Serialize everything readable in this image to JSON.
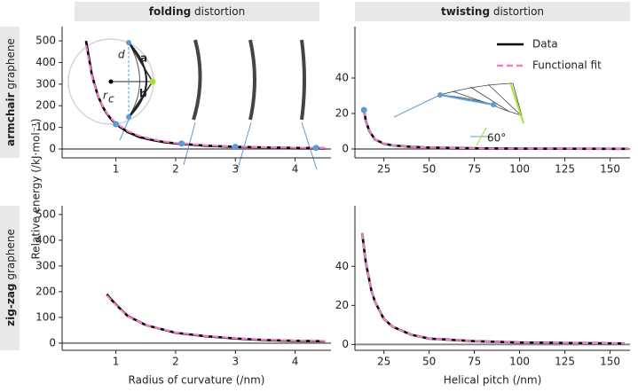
{
  "column_headers": [
    [
      "folding",
      "distortion"
    ],
    [
      "twisting",
      "distortion"
    ]
  ],
  "row_labels": [
    [
      "armchair",
      "graphene"
    ],
    [
      "zig-zag",
      "graphene"
    ]
  ],
  "y_label": "Relative energy (/kJ·mol⁻¹)",
  "chart_data": [
    {
      "type": "line",
      "xlim": [
        0.1,
        4.6
      ],
      "ylim": [
        -41,
        566
      ],
      "xticks": [
        1,
        2,
        3,
        4
      ],
      "yticks": [
        0,
        100,
        200,
        300,
        400,
        500
      ],
      "x": [
        0.5,
        0.6,
        0.7,
        0.8,
        0.9,
        1.0,
        1.2,
        1.4,
        1.6,
        1.8,
        2.0,
        2.5,
        3.0,
        3.5,
        4.0,
        4.5
      ],
      "series": [
        {
          "color": "#000000",
          "values": [
            500,
            340,
            245,
            185,
            145,
            115,
            78,
            55,
            42,
            32,
            26,
            15,
            10,
            7,
            5,
            4
          ]
        },
        {
          "color": "#f27fc8",
          "dashed": true,
          "values": [
            480,
            335,
            245,
            188,
            148,
            120,
            83,
            60,
            45,
            35,
            28,
            17,
            11,
            8,
            6,
            5
          ]
        }
      ],
      "highlights": {
        "color": "#5a9bd8",
        "x": [
          1.0,
          2.1,
          3.0,
          4.35
        ],
        "values": [
          115,
          25,
          10,
          5
        ]
      },
      "annotations": [
        "d",
        "a",
        "b",
        "r",
        "c"
      ]
    },
    {
      "type": "line",
      "xlim": [
        9,
        161
      ],
      "ylim": [
        -5,
        69
      ],
      "xticks": [
        25,
        50,
        75,
        100,
        125,
        150
      ],
      "yticks": [
        0,
        20,
        40
      ],
      "x": [
        14,
        15,
        17,
        20,
        25,
        30,
        40,
        50,
        75,
        100,
        125,
        160
      ],
      "series": [
        {
          "name": "Data",
          "color": "#000000",
          "values": [
            22,
            16,
            10,
            5.5,
            3,
            2,
            1.2,
            0.8,
            0.4,
            0.2,
            0.15,
            0.1
          ]
        },
        {
          "name": "Functional fit",
          "color": "#f27fc8",
          "dashed": true,
          "values": [
            22,
            16,
            10,
            5.6,
            3.1,
            2,
            1.2,
            0.8,
            0.4,
            0.2,
            0.15,
            0.1
          ]
        }
      ],
      "legend": "upper right",
      "highlights": {
        "color": "#5a9bd8",
        "x": [
          14
        ],
        "values": [
          22
        ]
      },
      "annotations": [
        "60°"
      ]
    },
    {
      "type": "line",
      "xlim": [
        0.1,
        4.6
      ],
      "ylim": [
        -28,
        534
      ],
      "xticks": [
        1,
        2,
        3,
        4
      ],
      "yticks": [
        0,
        100,
        200,
        300,
        400,
        500
      ],
      "xlabel": "Radius of curvature (/nm)",
      "x": [
        0.85,
        0.9,
        1.0,
        1.2,
        1.5,
        2.0,
        2.5,
        3.0,
        3.5,
        4.0,
        4.5
      ],
      "series": [
        {
          "color": "#000000",
          "values": [
            190,
            175,
            150,
            105,
            70,
            40,
            27,
            18,
            12,
            9,
            7
          ]
        },
        {
          "color": "#f27fc8",
          "dashed": true,
          "values": [
            185,
            172,
            148,
            104,
            70,
            41,
            28,
            19,
            13,
            10,
            8
          ]
        }
      ]
    },
    {
      "type": "line",
      "xlim": [
        9,
        161
      ],
      "ylim": [
        -3,
        71
      ],
      "xticks": [
        25,
        50,
        75,
        100,
        125,
        150
      ],
      "yticks": [
        0,
        20,
        40
      ],
      "xlabel": "Helical pitch (/nm)",
      "x": [
        13,
        15,
        18,
        20,
        25,
        30,
        40,
        50,
        75,
        100,
        125,
        158
      ],
      "series": [
        {
          "color": "#000000",
          "values": [
            57,
            42,
            28,
            22,
            13,
            9,
            5,
            3,
            1.7,
            1,
            0.8,
            0.5
          ]
        },
        {
          "color": "#f27fc8",
          "dashed": true,
          "values": [
            57,
            42,
            28,
            22,
            13,
            9,
            5,
            3,
            1.7,
            1,
            0.8,
            0.5
          ]
        }
      ]
    }
  ]
}
